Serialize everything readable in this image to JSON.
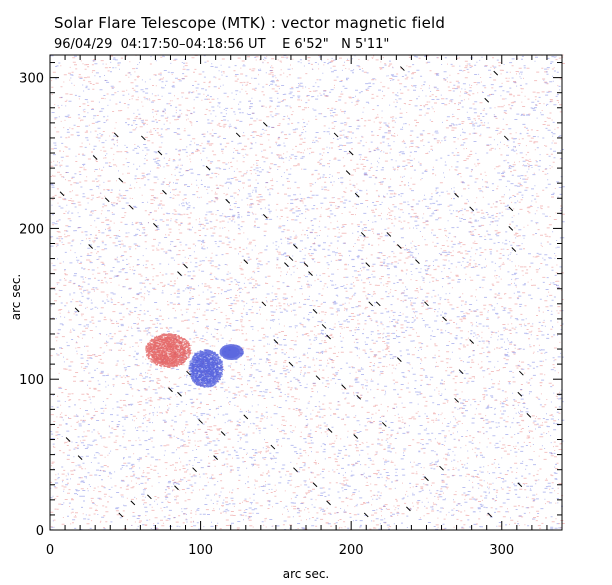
{
  "page": {
    "title": "Solar Flare Telescope (MTK) : vector magnetic field",
    "subtitle_date": "96/04/29",
    "subtitle_time": "04:17:50–04:18:56 UT",
    "subtitle_coords": "E 6'52\"   N 5'11\""
  },
  "chart_data": {
    "type": "heatmap",
    "title": "Solar Flare Telescope (MTK) : vector magnetic field",
    "subtitle": "96/04/29  04:17:50–04:18:56 UT    E 6'52\"   N 5'11\"",
    "xlabel": "arc sec.",
    "ylabel": "arc sec.",
    "xlim": [
      0,
      340
    ],
    "ylim": [
      0,
      315
    ],
    "x_ticks": [
      0,
      100,
      200,
      300
    ],
    "y_ticks": [
      0,
      100,
      200,
      300
    ],
    "x_tick_labels": [
      "0",
      "100",
      "200",
      "300"
    ],
    "y_tick_labels": [
      "0",
      "100",
      "200",
      "300"
    ],
    "grid": false,
    "colors": {
      "positive_polarity": "#e05050",
      "negative_polarity": "#3c4bd8",
      "vectors": "#000000"
    },
    "polarity_regions": [
      {
        "polarity": "positive",
        "center_x": 78,
        "center_y": 119,
        "radius_x": 12,
        "radius_y": 9
      },
      {
        "polarity": "negative",
        "center_x": 103,
        "center_y": 107,
        "radius_x": 9,
        "radius_y": 10
      },
      {
        "polarity": "negative",
        "center_x": 120,
        "center_y": 118,
        "radius_x": 6,
        "radius_y": 4
      }
    ],
    "transverse_vectors": [
      [
        8,
        223
      ],
      [
        18,
        146
      ],
      [
        27,
        188
      ],
      [
        30,
        247
      ],
      [
        38,
        219
      ],
      [
        44,
        262
      ],
      [
        47,
        232
      ],
      [
        54,
        214
      ],
      [
        62,
        260
      ],
      [
        70,
        202
      ],
      [
        73,
        250
      ],
      [
        76,
        224
      ],
      [
        86,
        170
      ],
      [
        90,
        175
      ],
      [
        80,
        93
      ],
      [
        86,
        90
      ],
      [
        92,
        104
      ],
      [
        100,
        72
      ],
      [
        110,
        48
      ],
      [
        125,
        262
      ],
      [
        143,
        269
      ],
      [
        143,
        208
      ],
      [
        157,
        176
      ],
      [
        160,
        180
      ],
      [
        163,
        188
      ],
      [
        170,
        176
      ],
      [
        173,
        170
      ],
      [
        176,
        145
      ],
      [
        182,
        135
      ],
      [
        185,
        128
      ],
      [
        190,
        262
      ],
      [
        198,
        237
      ],
      [
        200,
        250
      ],
      [
        204,
        222
      ],
      [
        208,
        196
      ],
      [
        211,
        176
      ],
      [
        213,
        150
      ],
      [
        225,
        196
      ],
      [
        232,
        188
      ],
      [
        218,
        150
      ],
      [
        232,
        113
      ],
      [
        244,
        178
      ],
      [
        250,
        150
      ],
      [
        262,
        140
      ],
      [
        270,
        222
      ],
      [
        273,
        105
      ],
      [
        280,
        125
      ],
      [
        290,
        285
      ],
      [
        296,
        303
      ],
      [
        303,
        260
      ],
      [
        306,
        200
      ],
      [
        308,
        186
      ],
      [
        306,
        213
      ],
      [
        313,
        104
      ],
      [
        312,
        90
      ],
      [
        318,
        76
      ],
      [
        260,
        41
      ],
      [
        250,
        34
      ],
      [
        238,
        14
      ],
      [
        210,
        10
      ],
      [
        185,
        18
      ],
      [
        176,
        30
      ],
      [
        163,
        40
      ],
      [
        148,
        55
      ],
      [
        130,
        75
      ],
      [
        115,
        64
      ],
      [
        96,
        40
      ],
      [
        84,
        28
      ],
      [
        66,
        22
      ],
      [
        55,
        18
      ],
      [
        47,
        10
      ],
      [
        20,
        48
      ],
      [
        12,
        60
      ],
      [
        178,
        101
      ],
      [
        195,
        95
      ],
      [
        205,
        88
      ],
      [
        222,
        70
      ],
      [
        186,
        66
      ],
      [
        160,
        110
      ],
      [
        150,
        125
      ],
      [
        142,
        150
      ],
      [
        130,
        178
      ],
      [
        118,
        218
      ],
      [
        105,
        240
      ],
      [
        203,
        62
      ],
      [
        234,
        306
      ],
      [
        280,
        213
      ],
      [
        270,
        86
      ],
      [
        312,
        30
      ],
      [
        292,
        10
      ]
    ]
  }
}
